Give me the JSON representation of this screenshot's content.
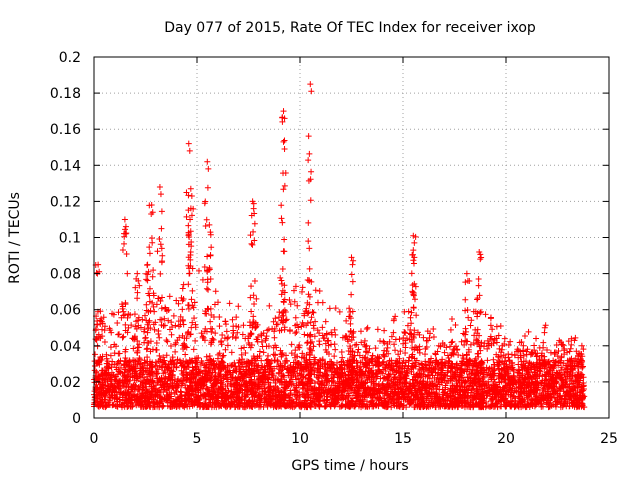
{
  "chart_data": {
    "type": "scatter",
    "title": "Day 077 of 2015, Rate Of TEC Index for receiver ixop",
    "xlabel": "GPS time / hours",
    "ylabel": "ROTI / TECUs",
    "xlim": [
      0,
      25
    ],
    "ylim": [
      0,
      0.2
    ],
    "xticks": [
      0,
      5,
      10,
      15,
      20,
      25
    ],
    "xtick_labels": [
      "0",
      "5",
      "10",
      "15",
      "20",
      "25"
    ],
    "yticks": [
      0,
      0.02,
      0.04,
      0.06,
      0.08,
      0.1,
      0.12,
      0.14,
      0.16,
      0.18,
      0.2
    ],
    "ytick_labels": [
      "0",
      "0.02",
      "0.04",
      "0.06",
      "0.08",
      "0.1",
      "0.12",
      "0.14",
      "0.16",
      "0.18",
      "0.2"
    ],
    "grid": true,
    "marker": "+",
    "color": "#ff0000",
    "data_range_x": [
      0,
      23.8
    ],
    "series": [
      {
        "name": "ROTI",
        "peaks": [
          {
            "x": 0.2,
            "y": 0.085
          },
          {
            "x": 1.5,
            "y": 0.11
          },
          {
            "x": 2.1,
            "y": 0.08
          },
          {
            "x": 2.6,
            "y": 0.085
          },
          {
            "x": 2.8,
            "y": 0.118
          },
          {
            "x": 3.2,
            "y": 0.128
          },
          {
            "x": 4.6,
            "y": 0.152
          },
          {
            "x": 4.7,
            "y": 0.127
          },
          {
            "x": 5.5,
            "y": 0.142
          },
          {
            "x": 5.6,
            "y": 0.107
          },
          {
            "x": 7.7,
            "y": 0.12
          },
          {
            "x": 9.2,
            "y": 0.17
          },
          {
            "x": 9.2,
            "y": 0.153
          },
          {
            "x": 10.5,
            "y": 0.185
          },
          {
            "x": 10.4,
            "y": 0.098
          },
          {
            "x": 12.5,
            "y": 0.089
          },
          {
            "x": 15.5,
            "y": 0.101
          },
          {
            "x": 15.5,
            "y": 0.093
          },
          {
            "x": 18.7,
            "y": 0.092
          },
          {
            "x": 18.1,
            "y": 0.08
          }
        ]
      }
    ]
  }
}
